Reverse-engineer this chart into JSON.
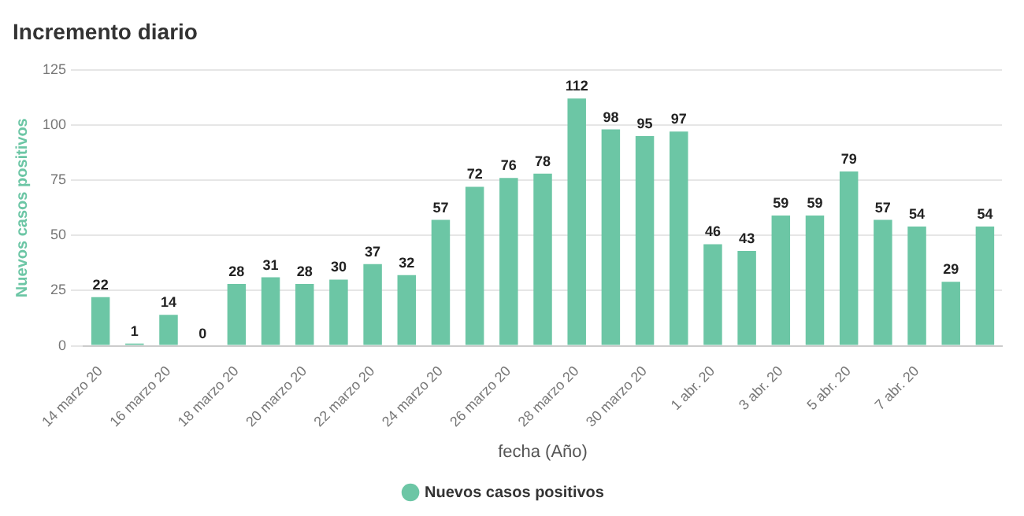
{
  "chart_data": {
    "type": "bar",
    "title": "Incremento diario",
    "xlabel": "fecha (Año)",
    "ylabel": "Nuevos casos positivos",
    "categories": [
      "14 marzo 20",
      null,
      "16 marzo 20",
      null,
      "18 marzo 20",
      null,
      "20 marzo 20",
      null,
      "22 marzo 20",
      null,
      "24 marzo 20",
      null,
      "26 marzo 20",
      null,
      "28 marzo 20",
      null,
      "30 marzo 20",
      null,
      "1 abr. 20",
      null,
      "3 abr. 20",
      null,
      "5 abr. 20",
      null,
      "7 abr. 20",
      null,
      null
    ],
    "series": [
      {
        "name": "Nuevos casos positivos",
        "color": "#6cc6a5",
        "values": [
          22,
          1,
          14,
          0,
          28,
          31,
          28,
          30,
          37,
          32,
          57,
          72,
          76,
          78,
          112,
          98,
          95,
          97,
          46,
          43,
          59,
          59,
          79,
          57,
          54,
          29,
          54
        ]
      }
    ],
    "ylim": [
      0,
      125
    ],
    "yticks": [
      0,
      25,
      50,
      75,
      100,
      125
    ],
    "grid": "y",
    "legend": "bottom",
    "data_labels": true
  }
}
